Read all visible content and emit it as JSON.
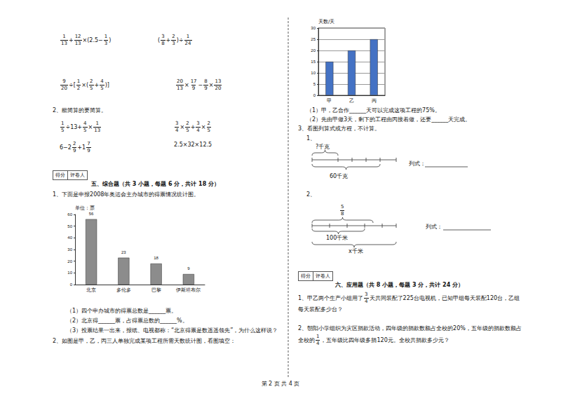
{
  "calculations": {
    "expressions_a": [
      [
        {
          "n": "1",
          "d": "13"
        },
        "+",
        {
          "n": "12",
          "d": "13"
        },
        "×(2.5−",
        {
          "n": "1",
          "d": "3"
        },
        ")"
      ],
      [
        "(",
        {
          "n": "3",
          "d": "8"
        },
        "+",
        {
          "n": "2",
          "d": "3"
        },
        ")÷",
        {
          "n": "1",
          "d": "24"
        }
      ],
      [
        {
          "n": "9",
          "d": "20"
        },
        "÷[",
        {
          "n": "1",
          "d": "2"
        },
        "×(",
        {
          "n": "2",
          "d": "5"
        },
        "+",
        {
          "n": "4",
          "d": "5"
        },
        ")]"
      ],
      [
        {
          "n": "20",
          "d": "13"
        },
        "×",
        {
          "n": "17",
          "d": "9"
        },
        "−",
        {
          "n": "8",
          "d": "9"
        },
        "×",
        {
          "n": "13",
          "d": "20"
        }
      ]
    ],
    "heading": "2、能简算的要简算。",
    "expressions_b": [
      [
        {
          "n": "1",
          "d": "5"
        },
        "÷13+",
        {
          "n": "4",
          "d": "5"
        },
        "×",
        {
          "n": "1",
          "d": "13"
        }
      ],
      [
        {
          "n": "3",
          "d": "4"
        },
        "×",
        {
          "n": "2",
          "d": "5"
        },
        "+",
        {
          "n": "3",
          "d": "4"
        },
        "×",
        {
          "n": "2",
          "d": "5"
        }
      ],
      [
        "6−2",
        {
          "n": "2",
          "d": "9"
        },
        "+1",
        {
          "n": "7",
          "d": "9"
        }
      ],
      [
        "2.5×32×12.5"
      ]
    ]
  },
  "section5": {
    "score_box": [
      "得分",
      "评卷人"
    ],
    "title": "五、综合题（共 3 小题，每题 6 分，共计 18 分）",
    "q1": "1、下面是申报2008年奥运会主办城市的得票情况统计图。",
    "q1_parts": [
      "（1）四个申办城市的得票总数是______票。",
      "（2）北京得______票，占得票总数的______%。",
      "（3）投票结果一出来，报纸、电视都称：“北京得票是数遥遥领先”，为什么这样说？"
    ],
    "q2": "2、如图是甲，乙，丙三人单独完成某项工程所需天数统计图，看图填空：",
    "q2_parts": [
      "（1）甲，乙合作______天可以完成这项工程的75%。",
      "（2）先由甲做3天，剩下的工程由丙接着做，还要______天完成。"
    ],
    "q3": "3、看图列算式或方程，不计算。",
    "diagram1": {
      "number": "1、",
      "top": "?千克",
      "bottom": "60千克",
      "formula": "列式："
    },
    "diagram2": {
      "number": "2、",
      "fraction": {
        "n": "5",
        "d": "8"
      },
      "middle": "100千米",
      "bottom": "x千米",
      "formula": "列式："
    }
  },
  "chart_data": [
    {
      "type": "bar",
      "ylabel": "单位：票",
      "categories": [
        "北京",
        "多伦多",
        "巴黎",
        "伊斯坦布尔"
      ],
      "values": [
        56,
        23,
        18,
        9
      ],
      "color": "#8c8c8c",
      "ylim": [
        0,
        60
      ],
      "yticks": [
        0,
        10,
        20,
        30,
        40,
        50,
        60
      ],
      "grid": false,
      "data_labels": true
    },
    {
      "type": "bar",
      "ylabel": "天数/天",
      "categories": [
        "甲",
        "乙",
        "丙"
      ],
      "values": [
        15,
        20,
        25
      ],
      "color": "#4472c4",
      "ylim": [
        0,
        30
      ],
      "yticks": [
        0,
        5,
        10,
        15,
        20,
        25,
        30
      ],
      "grid": true,
      "data_labels": false
    }
  ],
  "section6": {
    "score_box": [
      "得分",
      "评卷人"
    ],
    "title": "六、应用题（共 8 小题，每题 3 分，共计 24 分）",
    "questions": [
      [
        "1、甲乙两个生产小组用了",
        {
          "n": "3",
          "d": "4"
        },
        "天共同装配了225台电视机，已知甲组每天装配120台，乙组每天装配多少台？"
      ],
      [
        "2、朝阳小学组织为灾区捐款活动，四年级的捐款数额占全校的20%，五年级的捐款数额占全校的",
        {
          "n": "1",
          "d": "4"
        },
        "，五年级比四年级多捐120元。全校共捐款多少元？"
      ]
    ]
  },
  "footer": "第 2 页 共 4 页"
}
